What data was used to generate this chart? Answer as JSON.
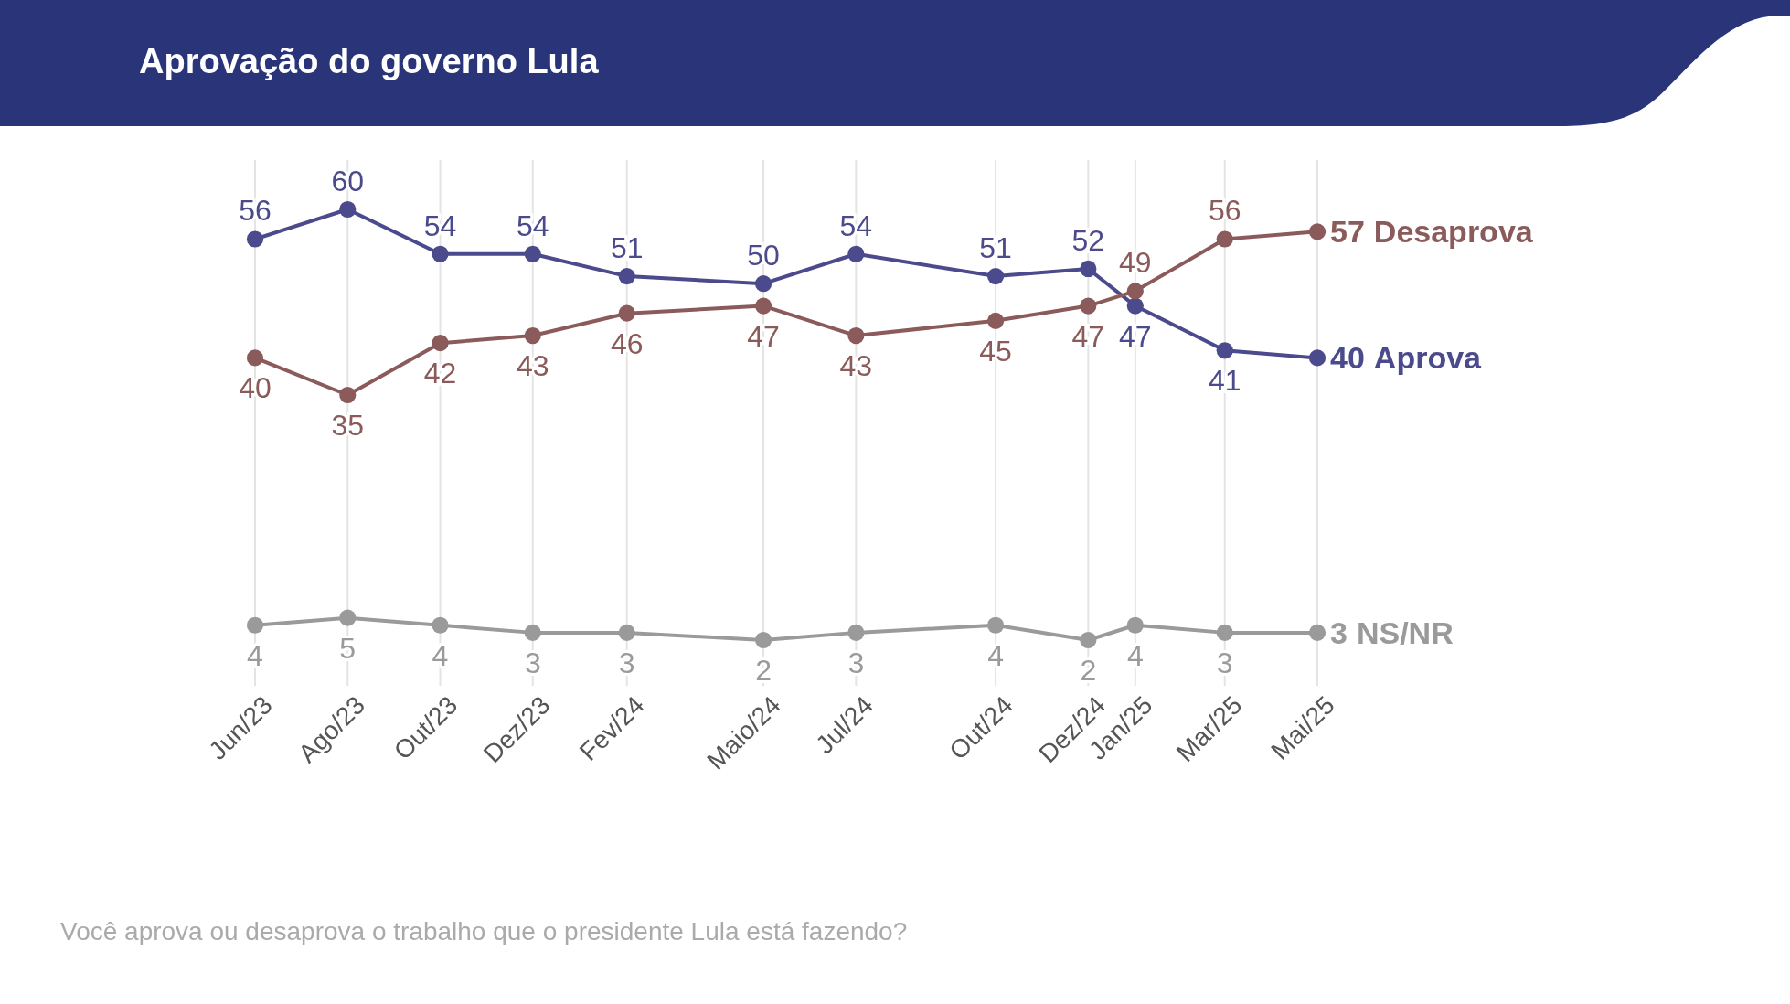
{
  "chart_data": {
    "type": "line",
    "title": "Aprovação do governo Lula",
    "x": [
      "2023-06",
      "2023-08",
      "2023-10",
      "2023-12",
      "2024-02",
      "2024-05",
      "2024-07",
      "2024-10",
      "2024-12",
      "2025-01",
      "2025-03",
      "2025-05"
    ],
    "xlim": [
      "2023-06",
      "2025-05"
    ],
    "xticks": [
      {
        "value": "2023-06",
        "label": "Jun/23"
      },
      {
        "value": "2023-08",
        "label": "Ago/23"
      },
      {
        "value": "2023-10",
        "label": "Out/23"
      },
      {
        "value": "2023-12",
        "label": "Dez/23"
      },
      {
        "value": "2024-02",
        "label": "Fev/24"
      },
      {
        "value": "2024-05",
        "label": "Maio/24"
      },
      {
        "value": "2024-07",
        "label": "Jul/24"
      },
      {
        "value": "2024-10",
        "label": "Out/24"
      },
      {
        "value": "2024-12",
        "label": "Dez/24"
      },
      {
        "value": "2025-01",
        "label": "Jan/25"
      },
      {
        "value": "2025-03",
        "label": "Mar/25"
      },
      {
        "value": "2025-05",
        "label": "Mai/25"
      }
    ],
    "tick_labels": "x",
    "series": [
      {
        "name": "Aprova",
        "color": "#4b4a8c",
        "values": [
          56,
          60,
          54,
          54,
          51,
          50,
          54,
          51,
          52,
          47,
          41,
          40
        ]
      },
      {
        "name": "Desaprova",
        "color": "#8b5a5a",
        "values": [
          40,
          35,
          42,
          43,
          46,
          47,
          43,
          45,
          47,
          49,
          56,
          57
        ]
      },
      {
        "name": "NS/NR",
        "color": "#9a9a9a",
        "values": [
          4,
          5,
          4,
          3,
          3,
          2,
          3,
          4,
          2,
          4,
          3,
          3
        ]
      }
    ],
    "data_labels": true,
    "grid": "x",
    "marker": "circle",
    "line_style": "solid",
    "annotations": [
      "Você aprova ou desaprova o trabalho que o presidente Lula está fazendo?"
    ]
  }
}
